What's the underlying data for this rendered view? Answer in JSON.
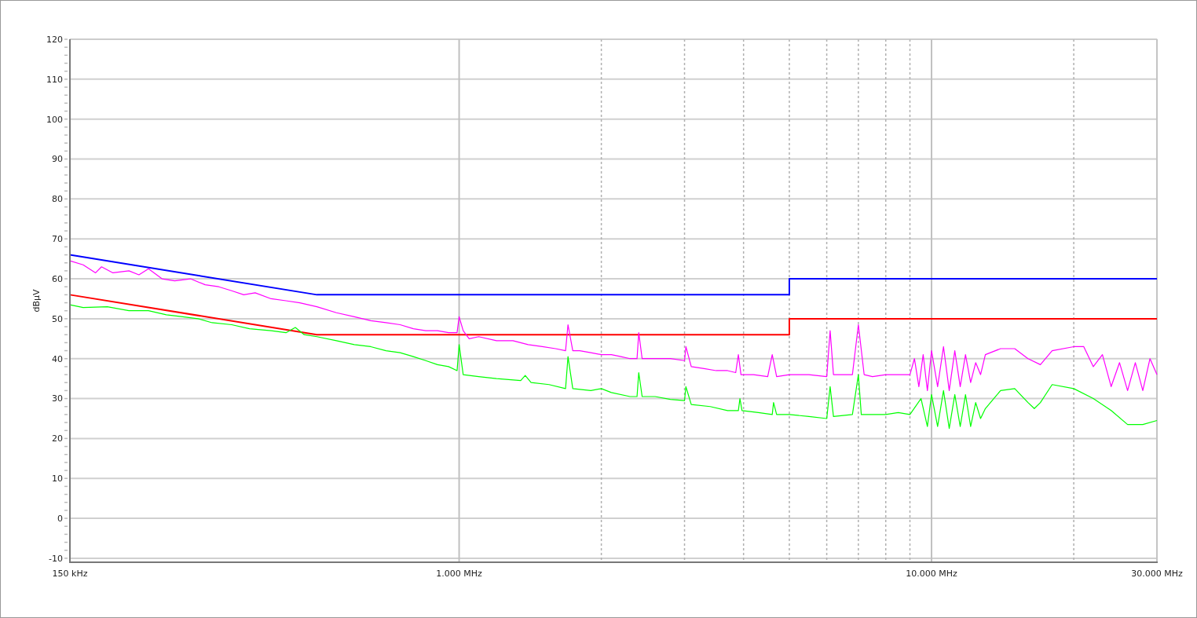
{
  "chart_data": {
    "type": "line",
    "ylabel": "dBµV",
    "log": "x",
    "grid": true,
    "line_style": "solid",
    "xlim": [
      150,
      30000
    ],
    "ylim": [
      -11,
      120
    ],
    "xticks": [
      {
        "value": 150,
        "label": "150 kHz"
      },
      {
        "value": 1000,
        "label": "1.000 MHz"
      },
      {
        "value": 2000,
        "label": null
      },
      {
        "value": 3000,
        "label": null
      },
      {
        "value": 4000,
        "label": null
      },
      {
        "value": 5000,
        "label": null
      },
      {
        "value": 6000,
        "label": null
      },
      {
        "value": 7000,
        "label": null
      },
      {
        "value": 8000,
        "label": null
      },
      {
        "value": 9000,
        "label": null
      },
      {
        "value": 10000,
        "label": "10.000 MHz"
      },
      {
        "value": 20000,
        "label": null
      },
      {
        "value": 30000,
        "label": "30.000 MHz"
      }
    ],
    "yticks": [
      -10,
      0,
      10,
      20,
      30,
      40,
      50,
      60,
      70,
      80,
      90,
      100,
      110,
      120
    ],
    "series": [
      {
        "color": "#0000ff",
        "x": [
          150,
          500,
          5000,
          5000,
          30000
        ],
        "values": [
          66,
          56,
          56,
          60,
          60
        ]
      },
      {
        "color": "#ff0000",
        "x": [
          150,
          500,
          5000,
          5000,
          30000
        ],
        "values": [
          56,
          46,
          46,
          50,
          50
        ]
      },
      {
        "color": "#ff00ff",
        "x": [
          150,
          160,
          170,
          175,
          185,
          200,
          210,
          220,
          235,
          250,
          270,
          290,
          310,
          330,
          350,
          370,
          400,
          430,
          460,
          500,
          550,
          600,
          650,
          700,
          750,
          800,
          850,
          900,
          950,
          990,
          1000,
          1020,
          1050,
          1100,
          1200,
          1300,
          1400,
          1500,
          1600,
          1680,
          1700,
          1740,
          1800,
          1900,
          2000,
          2100,
          2200,
          2300,
          2380,
          2400,
          2440,
          2600,
          2800,
          3000,
          3020,
          3100,
          3300,
          3500,
          3700,
          3850,
          3900,
          3950,
          4200,
          4500,
          4600,
          4700,
          5000,
          5500,
          6000,
          6100,
          6200,
          6800,
          7000,
          7200,
          7500,
          8000,
          8500,
          9000,
          9200,
          9400,
          9600,
          9800,
          10000,
          10300,
          10600,
          10900,
          11200,
          11500,
          11800,
          12100,
          12400,
          12700,
          13000,
          14000,
          15000,
          16000,
          17000,
          18000,
          20000,
          21000,
          22000,
          23000,
          24000,
          25000,
          26000,
          27000,
          28000,
          29000,
          30000
        ],
        "values": [
          64.5,
          63.5,
          61.5,
          63,
          61.5,
          62,
          61,
          62.5,
          60,
          59.5,
          60,
          58.5,
          58,
          57,
          56,
          56.5,
          55,
          54.5,
          54,
          53,
          51.5,
          50.5,
          49.5,
          49,
          48.5,
          47.5,
          47,
          47,
          46.5,
          46.5,
          50.5,
          47,
          45,
          45.5,
          44.5,
          44.5,
          43.5,
          43,
          42.5,
          42,
          48.5,
          42,
          42,
          41.5,
          41,
          41,
          40.5,
          40,
          40,
          46.5,
          40,
          40,
          40,
          39.5,
          43,
          38,
          37.5,
          37,
          37,
          36.5,
          41,
          36,
          36,
          35.5,
          41,
          35.5,
          36,
          36,
          35.5,
          47,
          36,
          36,
          48.5,
          36,
          35.5,
          36,
          36,
          36,
          40,
          33,
          41,
          32,
          42,
          33,
          43,
          32,
          42,
          33,
          41,
          34,
          39,
          36,
          41,
          42.5,
          42.5,
          40,
          38.5,
          42,
          43,
          43,
          38,
          41,
          33,
          39,
          32,
          39,
          32,
          40,
          36
        ]
      },
      {
        "color": "#00ff00",
        "x": [
          150,
          160,
          180,
          200,
          220,
          240,
          260,
          280,
          300,
          330,
          360,
          400,
          430,
          450,
          470,
          500,
          550,
          600,
          650,
          700,
          750,
          800,
          850,
          900,
          950,
          990,
          1000,
          1020,
          1100,
          1200,
          1350,
          1380,
          1420,
          1550,
          1680,
          1700,
          1740,
          1900,
          2000,
          2100,
          2300,
          2380,
          2400,
          2440,
          2600,
          2800,
          3000,
          3020,
          3100,
          3400,
          3700,
          3900,
          3930,
          3970,
          4300,
          4600,
          4630,
          4700,
          5000,
          5500,
          6000,
          6100,
          6200,
          6800,
          7000,
          7100,
          7500,
          8000,
          8500,
          9000,
          9500,
          9800,
          10000,
          10300,
          10600,
          10900,
          11200,
          11500,
          11800,
          12100,
          12400,
          12700,
          13000,
          14000,
          15000,
          16000,
          16500,
          17000,
          18000,
          20000,
          22000,
          24000,
          26000,
          28000,
          30000
        ],
        "values": [
          53.5,
          52.8,
          53,
          52,
          52,
          51,
          50.5,
          50,
          49,
          48.5,
          47.5,
          47,
          46.5,
          47.8,
          46,
          45.5,
          44.5,
          43.5,
          43,
          42,
          41.5,
          40.5,
          39.5,
          38.5,
          38,
          37,
          43.5,
          36,
          35.5,
          35,
          34.5,
          35.8,
          34,
          33.5,
          32.5,
          40.5,
          32.5,
          32,
          32.5,
          31.5,
          30.5,
          30.5,
          36.5,
          30.5,
          30.5,
          29.8,
          29.5,
          33,
          28.5,
          28,
          27,
          27,
          30,
          27,
          26.5,
          26,
          29,
          26,
          26,
          25.5,
          25,
          33,
          25.5,
          26,
          36,
          26,
          26,
          26,
          26.5,
          26,
          30,
          23,
          31,
          23,
          32,
          22.5,
          31,
          23,
          31,
          23,
          29,
          25,
          27.5,
          32,
          32.5,
          29,
          27.5,
          29,
          33.5,
          32.5,
          30,
          27,
          23.5,
          23.5,
          24.5
        ]
      }
    ]
  }
}
